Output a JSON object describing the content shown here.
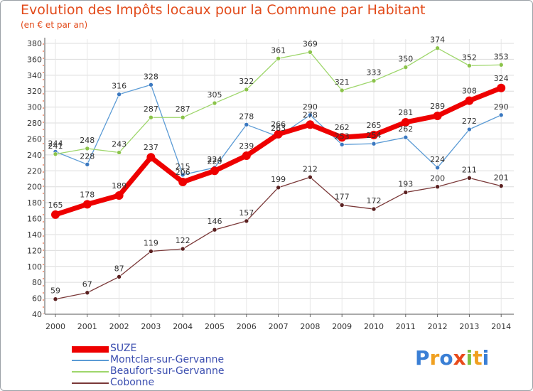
{
  "chart_data": {
    "type": "line",
    "title": "Evolution des Impôts locaux pour la Commune par Habitant",
    "subtitle": "(en € et par an)",
    "xlabel": "",
    "ylabel": "",
    "ylim": [
      40,
      380
    ],
    "yticks": [
      40,
      60,
      80,
      100,
      120,
      140,
      160,
      180,
      200,
      220,
      240,
      260,
      280,
      300,
      320,
      340,
      360,
      380
    ],
    "x": [
      "2000",
      "2001",
      "2002",
      "2003",
      "2004",
      "2005",
      "2006",
      "2007",
      "2008",
      "2009",
      "2010",
      "2011",
      "2012",
      "2013",
      "2014"
    ],
    "grid": true,
    "legend_position": "bottom-left",
    "series": [
      {
        "name": "Montclar-sur-Gervanne",
        "color": "#5b9bd5",
        "marker": "#3a78c0",
        "style": "thin",
        "values": [
          244,
          228,
          316,
          328,
          215,
          224,
          278,
          263,
          290,
          253,
          254,
          262,
          224,
          272,
          290
        ],
        "labels": [
          "244",
          "228",
          "316",
          "328",
          "215",
          "224",
          "278",
          "263",
          "290",
          "253",
          "254",
          "262",
          "224",
          "272",
          "290"
        ]
      },
      {
        "name": "Beaufort-sur-Gervanne",
        "color": "#9ed66b",
        "marker": "#8bc34a",
        "style": "thin",
        "values": [
          241,
          248,
          243,
          287,
          287,
          305,
          322,
          361,
          369,
          321,
          333,
          350,
          374,
          352,
          353
        ],
        "labels": [
          "241",
          "248",
          "243",
          "287",
          "287",
          "305",
          "322",
          "361",
          "369",
          "321",
          "333",
          "350",
          "374",
          "352",
          "353"
        ]
      },
      {
        "name": "Cobonne",
        "color": "#7a3838",
        "marker": "#5a2020",
        "style": "thin",
        "values": [
          59,
          67,
          87,
          119,
          122,
          146,
          157,
          199,
          212,
          177,
          172,
          193,
          200,
          211,
          201
        ],
        "labels": [
          "59",
          "67",
          "87",
          "119",
          "122",
          "146",
          "157",
          "199",
          "212",
          "177",
          "172",
          "193",
          "200",
          "211",
          "201"
        ]
      },
      {
        "name": "SUZE",
        "color": "#ee0000",
        "marker": "#ee0000",
        "style": "thick",
        "values": [
          165,
          178,
          189,
          237,
          206,
          220,
          239,
          266,
          278,
          262,
          265,
          281,
          289,
          308,
          324
        ],
        "labels": [
          "165",
          "178",
          "189",
          "237",
          "206",
          "220",
          "239",
          "266",
          "278",
          "262",
          "265",
          "281",
          "289",
          "308",
          "324"
        ]
      }
    ],
    "legend": [
      {
        "name": "SUZE",
        "color": "#ee0000",
        "style": "thick"
      },
      {
        "name": "Montclar-sur-Gervanne",
        "color": "#5b9bd5",
        "style": "thin"
      },
      {
        "name": "Beaufort-sur-Gervanne",
        "color": "#9ed66b",
        "style": "thin"
      },
      {
        "name": "Cobonne",
        "color": "#7a3838",
        "style": "thin"
      }
    ]
  },
  "logo": {
    "letters": [
      "P",
      "r",
      "o",
      "x",
      "i",
      "t",
      "i"
    ],
    "colors": [
      "#3a7fd5",
      "#f0a020",
      "#3a7fd5",
      "#e84a1a",
      "#7cc040",
      "#f0a020",
      "#3a7fd5"
    ]
  }
}
